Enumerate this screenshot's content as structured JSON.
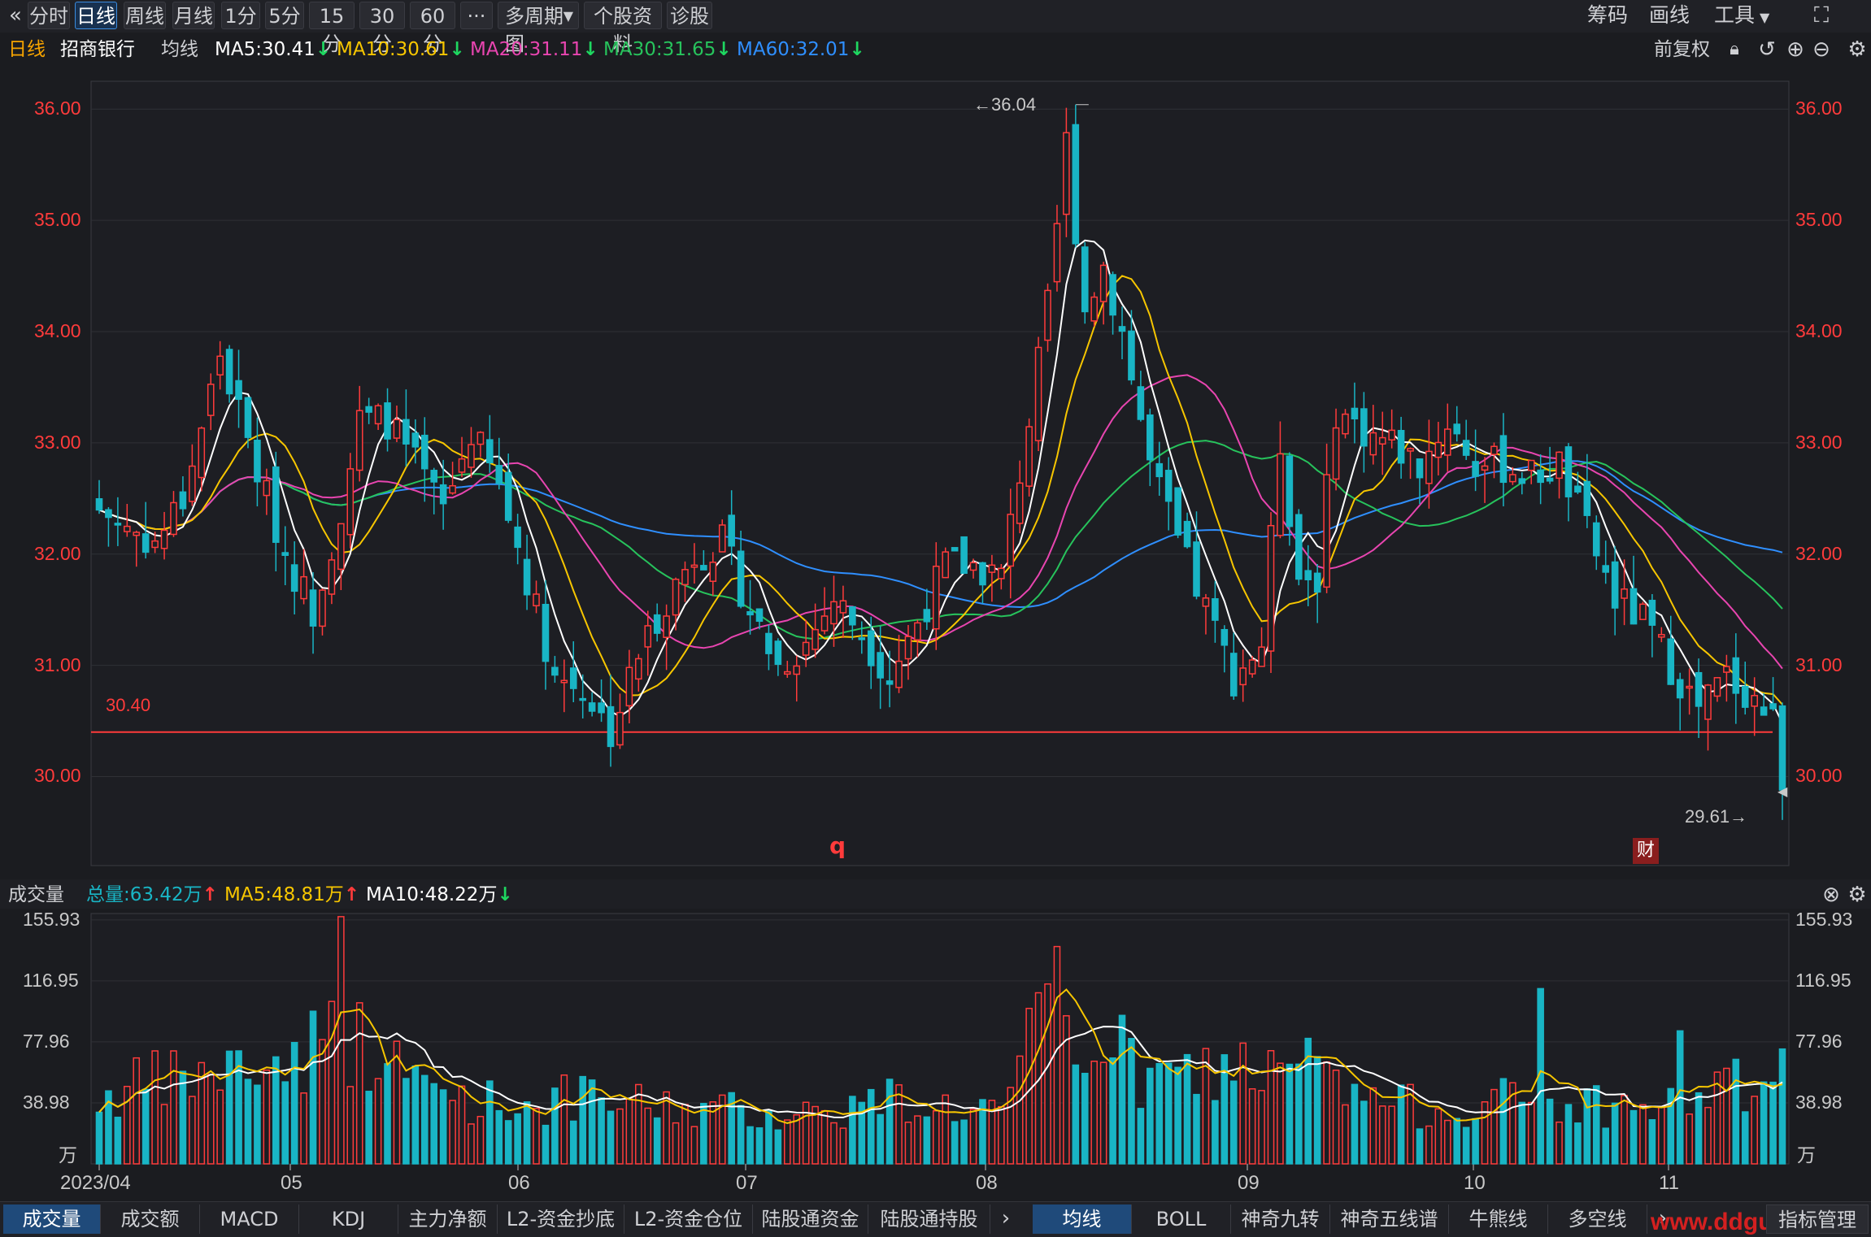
{
  "toolbar": {
    "back_icon": "double-chevron-left-icon",
    "periods": [
      "分时",
      "日线",
      "周线",
      "月线",
      "1分",
      "5分",
      "15分",
      "30分",
      "60分"
    ],
    "active_period": "日线",
    "more_label": "···",
    "multi_period_label": "多周期图",
    "stock_info_label": "个股资料",
    "diagnose_label": "诊股",
    "right_items": [
      "筹码",
      "画线",
      "工具"
    ],
    "fullscreen_icon": "fullscreen-icon"
  },
  "ma_bar": {
    "period": "日线",
    "stock_name": "招商银行",
    "ma_label": "均线",
    "ma5": "MA5:30.41",
    "ma10": "MA10:30.61",
    "ma20": "MA20:31.11",
    "ma30": "MA30:31.65",
    "ma60": "MA60:32.01",
    "adjust_label": "前复权"
  },
  "volume_bar": {
    "title": "成交量",
    "total": "总量:63.42万",
    "ma5": "MA5:48.81万",
    "ma10": "MA10:48.22万"
  },
  "colors": {
    "up": "#ff3b3b",
    "down": "#19b5c5",
    "ma5": "#ffffff",
    "ma10": "#f7c600",
    "ma20": "#e845b0",
    "ma30": "#27c35c",
    "ma60": "#2f8fff",
    "price_label": "#ff3b3b",
    "support_line": "#ff3b3b"
  },
  "chart_data": {
    "type": "candlestick",
    "x_ticks": [
      "2023/04",
      "05",
      "06",
      "07",
      "08",
      "09",
      "10",
      "11"
    ],
    "price_ticks": [
      "36.00",
      "35.00",
      "34.00",
      "33.00",
      "32.00",
      "31.00",
      "30.00"
    ],
    "ylim": [
      29.2,
      36.25
    ],
    "high_marker": "←36.04",
    "low_marker": "29.61→",
    "support_label": "30.40",
    "support_value": 30.4,
    "event_marker_q": "q",
    "event_marker_cai": "财",
    "close_anchors": [
      [
        0,
        32.4
      ],
      [
        6,
        32.1
      ],
      [
        9,
        32.5
      ],
      [
        13,
        33.8
      ],
      [
        16,
        33.0
      ],
      [
        20,
        32.0
      ],
      [
        23,
        31.5
      ],
      [
        26,
        32.4
      ],
      [
        28,
        33.2
      ],
      [
        31,
        33.2
      ],
      [
        34,
        32.8
      ],
      [
        37,
        32.4
      ],
      [
        40,
        33.1
      ],
      [
        43,
        32.6
      ],
      [
        46,
        31.8
      ],
      [
        49,
        30.9
      ],
      [
        52,
        30.8
      ],
      [
        55,
        30.4
      ],
      [
        58,
        31.1
      ],
      [
        61,
        31.6
      ],
      [
        64,
        32.0
      ],
      [
        67,
        32.1
      ],
      [
        70,
        31.5
      ],
      [
        73,
        31.0
      ],
      [
        76,
        31.2
      ],
      [
        79,
        31.6
      ],
      [
        82,
        31.3
      ],
      [
        85,
        30.9
      ],
      [
        88,
        31.4
      ],
      [
        91,
        31.9
      ],
      [
        94,
        31.9
      ],
      [
        97,
        31.8
      ],
      [
        100,
        33.2
      ],
      [
        102,
        34.2
      ],
      [
        104,
        35.7
      ],
      [
        106,
        34.2
      ],
      [
        108,
        34.6
      ],
      [
        110,
        34.0
      ],
      [
        113,
        32.8
      ],
      [
        116,
        32.1
      ],
      [
        119,
        31.5
      ],
      [
        122,
        30.9
      ],
      [
        125,
        31.2
      ],
      [
        127,
        33.0
      ],
      [
        129,
        31.8
      ],
      [
        131,
        31.8
      ],
      [
        133,
        33.3
      ],
      [
        136,
        33.1
      ],
      [
        139,
        33.0
      ],
      [
        142,
        32.8
      ],
      [
        145,
        33.2
      ],
      [
        148,
        32.8
      ],
      [
        151,
        32.8
      ],
      [
        154,
        32.7
      ],
      [
        157,
        32.8
      ],
      [
        160,
        32.2
      ],
      [
        163,
        31.6
      ],
      [
        166,
        31.4
      ],
      [
        169,
        31.0
      ],
      [
        172,
        30.6
      ],
      [
        175,
        30.9
      ],
      [
        178,
        30.7
      ],
      [
        180,
        30.5
      ],
      [
        181,
        30.0
      ]
    ],
    "volume_ticks": [
      "155.93",
      "116.95",
      "77.96",
      "38.98"
    ],
    "volume_unit": "万",
    "volume_max": 160,
    "volume_anchors": [
      [
        0,
        45
      ],
      [
        5,
        55
      ],
      [
        10,
        60
      ],
      [
        15,
        65
      ],
      [
        20,
        70
      ],
      [
        26,
        95
      ],
      [
        30,
        70
      ],
      [
        35,
        55
      ],
      [
        40,
        45
      ],
      [
        45,
        40
      ],
      [
        50,
        45
      ],
      [
        55,
        42
      ],
      [
        60,
        40
      ],
      [
        65,
        38
      ],
      [
        70,
        36
      ],
      [
        75,
        35
      ],
      [
        80,
        38
      ],
      [
        85,
        45
      ],
      [
        90,
        40
      ],
      [
        95,
        38
      ],
      [
        98,
        40
      ],
      [
        100,
        80
      ],
      [
        103,
        120
      ],
      [
        105,
        70
      ],
      [
        108,
        95
      ],
      [
        112,
        55
      ],
      [
        116,
        60
      ],
      [
        120,
        65
      ],
      [
        124,
        70
      ],
      [
        127,
        55
      ],
      [
        130,
        75
      ],
      [
        133,
        50
      ],
      [
        137,
        45
      ],
      [
        140,
        40
      ],
      [
        145,
        38
      ],
      [
        150,
        45
      ],
      [
        155,
        40
      ],
      [
        160,
        42
      ],
      [
        165,
        38
      ],
      [
        170,
        40
      ],
      [
        175,
        55
      ],
      [
        178,
        48
      ],
      [
        181,
        63
      ]
    ]
  },
  "tabs_left": [
    "成交量",
    "成交额",
    "MACD",
    "KDJ",
    "主力净额",
    "L2-资金抄底",
    "L2-资金仓位",
    "陆股通资金",
    "陆股通持股"
  ],
  "tabs_right": [
    "均线",
    "BOLL",
    "神奇九转",
    "神奇五线谱",
    "牛熊线",
    "多空线"
  ],
  "tabs_end": "指标管理",
  "watermark": "www.ddgu"
}
